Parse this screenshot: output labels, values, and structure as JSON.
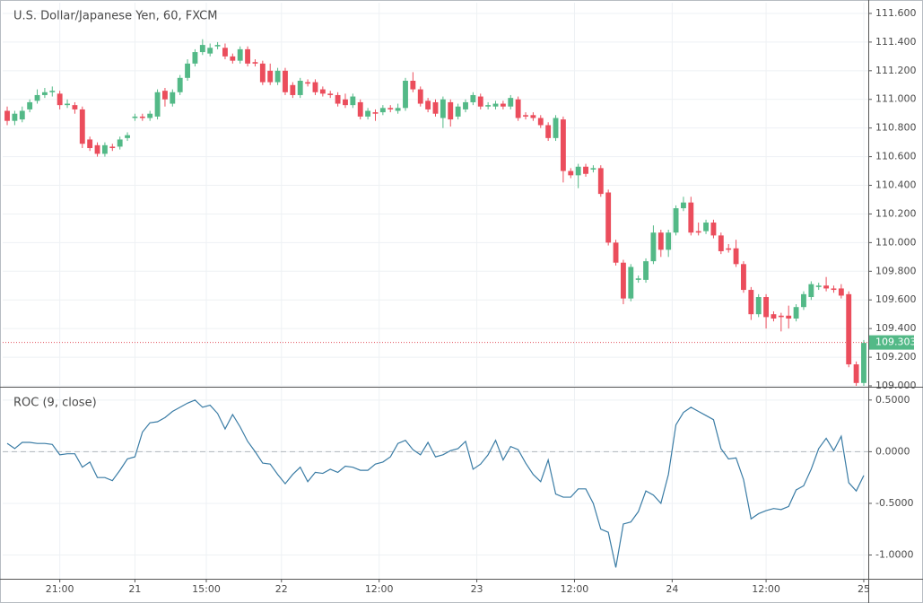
{
  "chart_data": [
    {
      "type": "candlestick",
      "title": "U.S. Dollar/Japanese Yen, 60, FXCM",
      "open": [
        110.92,
        110.85,
        110.86,
        110.93,
        110.99,
        111.03,
        111.05,
        111.04,
        110.96,
        110.96,
        110.93,
        110.72,
        110.68,
        110.62,
        110.67,
        110.67,
        110.73,
        110.87,
        110.88,
        110.87,
        110.88,
        111.06,
        110.97,
        111.05,
        111.15,
        111.25,
        111.33,
        111.32,
        111.37,
        111.36,
        111.3,
        111.27,
        111.35,
        111.26,
        111.25,
        111.2,
        111.12,
        111.2,
        111.1,
        111.03,
        111.12,
        111.12,
        111.07,
        111.04,
        111.03,
        111.0,
        110.96,
        110.98,
        110.88,
        110.91,
        110.91,
        110.94,
        110.92,
        110.94,
        111.13,
        111.07,
        110.99,
        110.98,
        110.87,
        110.98,
        110.88,
        110.93,
        110.98,
        111.02,
        110.95,
        110.95,
        110.97,
        110.95,
        111.0,
        110.89,
        110.89,
        110.87,
        110.82,
        110.73,
        110.86,
        110.5,
        110.47,
        110.53,
        110.51,
        110.52,
        110.35,
        110.0,
        109.86,
        109.61,
        109.74,
        109.74,
        109.87,
        110.07,
        109.95,
        110.07,
        110.24,
        110.28,
        110.08,
        110.08,
        110.14,
        110.05,
        109.96,
        109.96,
        109.85,
        109.67,
        109.5,
        109.62,
        109.5,
        109.49,
        109.49,
        109.47,
        109.55,
        109.62,
        109.69,
        109.7,
        109.68,
        109.68,
        109.64,
        109.15,
        109.02
      ],
      "high": [
        110.95,
        110.92,
        110.95,
        111.0,
        111.07,
        111.08,
        111.09,
        111.06,
        111.0,
        110.98,
        110.95,
        110.74,
        110.7,
        110.7,
        110.69,
        110.74,
        110.77,
        110.9,
        110.9,
        110.92,
        111.07,
        111.08,
        111.07,
        111.17,
        111.28,
        111.35,
        111.42,
        111.39,
        111.4,
        111.39,
        111.32,
        111.37,
        111.37,
        111.28,
        111.27,
        111.25,
        111.22,
        111.22,
        111.12,
        111.15,
        111.14,
        111.14,
        111.09,
        111.06,
        111.05,
        111.04,
        111.04,
        111.0,
        110.94,
        110.93,
        110.96,
        110.96,
        110.97,
        111.15,
        111.19,
        111.09,
        111.01,
        111.0,
        111.02,
        111.0,
        110.97,
        111.0,
        111.05,
        111.04,
        110.98,
        110.99,
        110.99,
        111.03,
        111.02,
        110.91,
        110.91,
        110.89,
        110.84,
        110.89,
        110.88,
        110.52,
        110.55,
        110.55,
        110.54,
        110.54,
        110.37,
        110.02,
        109.88,
        109.85,
        109.77,
        109.89,
        110.12,
        110.09,
        110.09,
        110.26,
        110.32,
        110.32,
        110.14,
        110.16,
        110.16,
        110.07,
        109.99,
        110.02,
        109.87,
        109.69,
        109.64,
        109.64,
        109.52,
        109.51,
        109.56,
        109.57,
        109.66,
        109.73,
        109.72,
        109.76,
        109.7,
        109.71,
        109.66,
        109.17,
        109.32
      ],
      "low": [
        110.82,
        110.82,
        110.84,
        110.91,
        110.97,
        111.01,
        111.02,
        110.93,
        110.94,
        110.9,
        110.66,
        110.64,
        110.6,
        110.6,
        110.64,
        110.65,
        110.71,
        110.85,
        110.85,
        110.85,
        110.86,
        110.95,
        110.95,
        111.03,
        111.13,
        111.23,
        111.31,
        111.3,
        111.35,
        111.28,
        111.25,
        111.25,
        111.23,
        111.23,
        111.1,
        111.1,
        111.1,
        111.03,
        111.01,
        111.01,
        111.09,
        111.03,
        111.02,
        111.01,
        110.95,
        110.94,
        110.94,
        110.86,
        110.86,
        110.85,
        110.89,
        110.91,
        110.9,
        110.92,
        111.05,
        110.95,
        110.91,
        110.88,
        110.8,
        110.81,
        110.86,
        110.91,
        110.96,
        110.93,
        110.93,
        110.93,
        110.93,
        110.93,
        110.85,
        110.86,
        110.85,
        110.8,
        110.71,
        110.71,
        110.42,
        110.45,
        110.38,
        110.46,
        110.49,
        110.32,
        109.98,
        109.84,
        109.57,
        109.59,
        109.72,
        109.72,
        109.85,
        109.9,
        109.9,
        110.05,
        110.22,
        110.05,
        110.05,
        110.06,
        110.03,
        109.92,
        109.93,
        109.83,
        109.65,
        109.46,
        109.48,
        109.4,
        109.45,
        109.38,
        109.4,
        109.45,
        109.53,
        109.6,
        109.67,
        109.66,
        109.65,
        109.61,
        109.13,
        109.0,
        109.0
      ],
      "close": [
        110.85,
        110.9,
        110.92,
        110.98,
        111.03,
        111.05,
        111.06,
        110.96,
        110.97,
        110.93,
        110.69,
        110.66,
        110.62,
        110.68,
        110.66,
        110.72,
        110.75,
        110.88,
        110.87,
        110.9,
        111.05,
        111.0,
        111.05,
        111.15,
        111.25,
        111.33,
        111.38,
        111.36,
        111.38,
        111.3,
        111.27,
        111.35,
        111.25,
        111.25,
        111.12,
        111.12,
        111.2,
        111.05,
        111.03,
        111.13,
        111.11,
        111.05,
        111.04,
        111.03,
        110.97,
        110.96,
        111.02,
        110.88,
        110.92,
        110.9,
        110.94,
        110.93,
        110.94,
        111.13,
        111.07,
        110.97,
        110.93,
        110.9,
        111.0,
        110.86,
        110.95,
        110.98,
        111.03,
        110.95,
        110.96,
        110.97,
        110.95,
        111.01,
        110.87,
        110.88,
        110.87,
        110.82,
        110.73,
        110.87,
        110.5,
        110.47,
        110.53,
        110.48,
        110.52,
        110.34,
        110.0,
        109.86,
        109.61,
        109.83,
        109.75,
        109.87,
        110.07,
        109.95,
        110.07,
        110.24,
        110.28,
        110.07,
        110.07,
        110.14,
        110.05,
        109.94,
        109.95,
        109.85,
        109.67,
        109.5,
        109.62,
        109.48,
        109.47,
        109.48,
        109.47,
        109.55,
        109.64,
        109.71,
        109.7,
        109.68,
        109.67,
        109.63,
        109.15,
        109.02,
        109.3
      ],
      "up_color": "#53b987",
      "down_color": "#eb4d5c",
      "xlim": [
        -0.6,
        114.6
      ],
      "ylim": [
        109.0,
        111.675
      ],
      "yticks": [
        {
          "value": 111.6,
          "label": "111.600"
        },
        {
          "value": 111.4,
          "label": "111.400"
        },
        {
          "value": 111.2,
          "label": "111.200"
        },
        {
          "value": 111.0,
          "label": "111.000"
        },
        {
          "value": 110.8,
          "label": "110.800"
        },
        {
          "value": 110.6,
          "label": "110.600"
        },
        {
          "value": 110.4,
          "label": "110.400"
        },
        {
          "value": 110.2,
          "label": "110.200"
        },
        {
          "value": 110.0,
          "label": "110.000"
        },
        {
          "value": 109.8,
          "label": "109.800"
        },
        {
          "value": 109.6,
          "label": "109.600"
        },
        {
          "value": 109.4,
          "label": "109.400"
        },
        {
          "value": 109.2,
          "label": "109.200"
        },
        {
          "value": 109.0,
          "label": "109.000"
        }
      ],
      "last_price": 109.303,
      "last_price_line_color": "#e3505d",
      "grid": true
    },
    {
      "type": "line",
      "title": "ROC (9, close)",
      "color": "#3a7ca5",
      "values": [
        0.08,
        0.03,
        0.09,
        0.09,
        0.08,
        0.08,
        0.07,
        -0.03,
        -0.02,
        -0.02,
        -0.15,
        -0.1,
        -0.25,
        -0.25,
        -0.28,
        -0.18,
        -0.07,
        -0.05,
        0.19,
        0.28,
        0.29,
        0.33,
        0.39,
        0.43,
        0.47,
        0.5,
        0.43,
        0.45,
        0.37,
        0.22,
        0.36,
        0.24,
        0.1,
        0.0,
        -0.11,
        -0.12,
        -0.22,
        -0.31,
        -0.22,
        -0.15,
        -0.29,
        -0.2,
        -0.21,
        -0.17,
        -0.2,
        -0.14,
        -0.15,
        -0.18,
        -0.18,
        -0.12,
        -0.1,
        -0.05,
        0.08,
        0.11,
        0.02,
        -0.03,
        0.09,
        -0.05,
        -0.03,
        0.01,
        0.03,
        0.1,
        -0.17,
        -0.12,
        -0.03,
        0.11,
        -0.08,
        0.05,
        0.02,
        -0.11,
        -0.22,
        -0.29,
        -0.08,
        -0.41,
        -0.44,
        -0.44,
        -0.36,
        -0.36,
        -0.5,
        -0.75,
        -0.78,
        -1.12,
        -0.7,
        -0.68,
        -0.58,
        -0.38,
        -0.42,
        -0.5,
        -0.22,
        0.26,
        0.38,
        0.43,
        0.39,
        0.35,
        0.31,
        0.03,
        -0.07,
        -0.06,
        -0.27,
        -0.65,
        -0.6,
        -0.57,
        -0.55,
        -0.56,
        -0.53,
        -0.37,
        -0.33,
        -0.17,
        0.03,
        0.13,
        0.01,
        0.15,
        -0.3,
        -0.38,
        -0.23
      ],
      "xlim": [
        -0.6,
        114.6
      ],
      "ylim": [
        -1.23,
        0.62
      ],
      "yticks": [
        {
          "value": 0.5,
          "label": "0.5000"
        },
        {
          "value": 0,
          "label": "0.0000"
        },
        {
          "value": -0.5,
          "label": "-0.5000"
        },
        {
          "value": -1,
          "label": "-1.0000"
        }
      ],
      "xticks": [
        {
          "value": 7,
          "label": "21:00"
        },
        {
          "value": 17,
          "label": "21"
        },
        {
          "value": 26.5,
          "label": "15:00"
        },
        {
          "value": 36.5,
          "label": "22"
        },
        {
          "value": 49.5,
          "label": "12:00"
        },
        {
          "value": 62.5,
          "label": "23"
        },
        {
          "value": 75.5,
          "label": "12:00"
        },
        {
          "value": 88.5,
          "label": "24"
        },
        {
          "value": 101,
          "label": "12:00"
        },
        {
          "value": 114,
          "label": "25"
        }
      ],
      "zero_line": 0,
      "grid": true
    }
  ]
}
